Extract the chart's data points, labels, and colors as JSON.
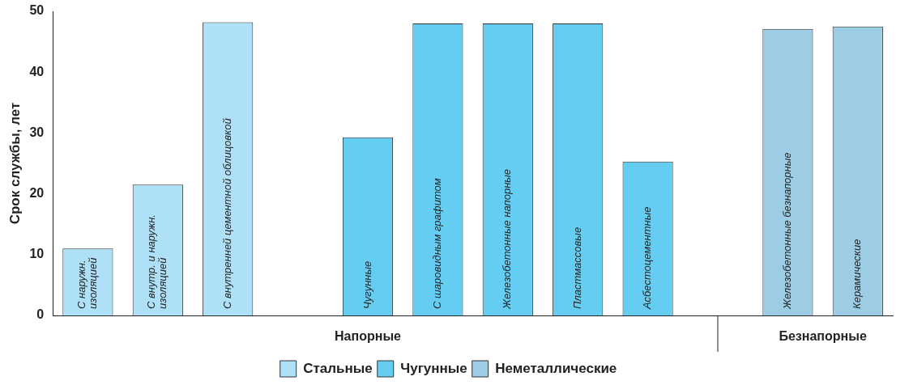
{
  "chart_data": {
    "type": "bar",
    "ylabel": "Срок службы, лет",
    "categories": [
      "С наружн.\nизоляцией",
      "С внутр. и наружн.\nизоляцией",
      "С внутренней цементной облицовкой",
      null,
      "Чугунные",
      "С шаровидным графитом",
      "Железобетонные напорные",
      "Пластмассовые",
      "Асбестоцементные",
      null,
      "Железобетонные безнапорные",
      "Керамические"
    ],
    "series": [
      {
        "name": "Стальные",
        "color": "#aee1f8",
        "values": [
          11,
          21.5,
          48.2,
          null,
          null,
          null,
          null,
          null,
          null,
          null,
          null,
          null
        ]
      },
      {
        "name": "Чугунные",
        "color": "#66cdf2",
        "values": [
          null,
          null,
          null,
          null,
          29.3,
          48,
          48,
          48,
          25.3,
          null,
          null,
          null
        ]
      },
      {
        "name": "Неметаллические",
        "color": "#9dcde4",
        "values": [
          null,
          null,
          null,
          null,
          null,
          null,
          null,
          null,
          null,
          null,
          47.1,
          47.5
        ]
      }
    ],
    "annotations": [
      "Напорные",
      "Безнапорные"
    ],
    "ylim": [
      0,
      50
    ],
    "yticks": [
      0,
      10,
      20,
      30,
      40,
      50
    ],
    "grid": false,
    "legend": "bottom"
  }
}
